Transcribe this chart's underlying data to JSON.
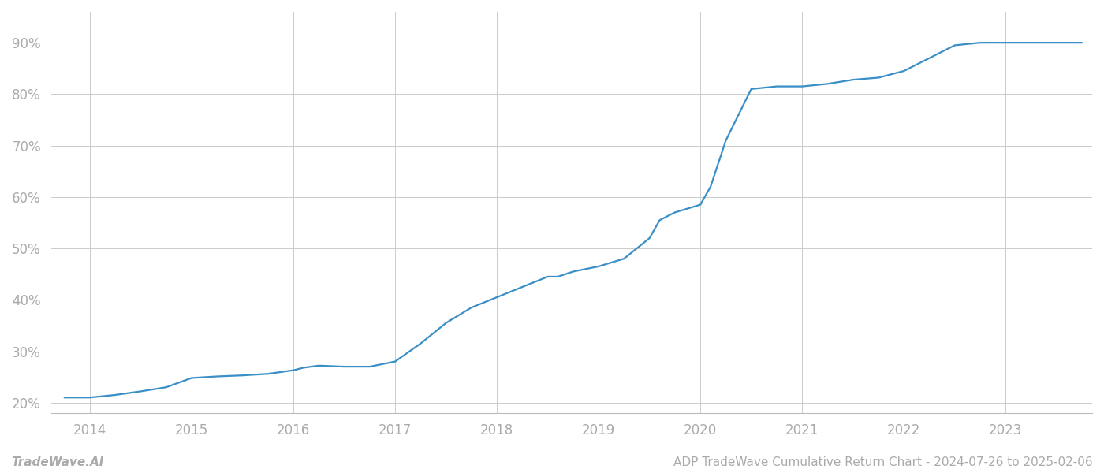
{
  "footer_left": "TradeWave.AI",
  "footer_right": "ADP TradeWave Cumulative Return Chart - 2024-07-26 to 2025-02-06",
  "line_color": "#3a8fc7",
  "line_width": 1.6,
  "background_color": "#ffffff",
  "grid_color": "#cccccc",
  "x_years": [
    2014,
    2015,
    2016,
    2017,
    2018,
    2019,
    2020,
    2021,
    2022,
    2023
  ],
  "data_x": [
    2013.75,
    2014.0,
    2014.25,
    2014.5,
    2014.75,
    2015.0,
    2015.25,
    2015.5,
    2015.75,
    2016.0,
    2016.1,
    2016.25,
    2016.5,
    2016.75,
    2017.0,
    2017.25,
    2017.5,
    2017.75,
    2018.0,
    2018.25,
    2018.5,
    2018.6,
    2018.75,
    2019.0,
    2019.25,
    2019.5,
    2019.6,
    2019.75,
    2020.0,
    2020.1,
    2020.25,
    2020.5,
    2020.75,
    2021.0,
    2021.25,
    2021.5,
    2021.75,
    2022.0,
    2022.25,
    2022.5,
    2022.75,
    2023.0,
    2023.25,
    2023.5,
    2023.75
  ],
  "data_y": [
    21.0,
    21.0,
    21.5,
    22.2,
    23.0,
    24.8,
    25.1,
    25.3,
    25.6,
    26.3,
    26.8,
    27.2,
    27.0,
    27.0,
    28.0,
    31.5,
    35.5,
    38.5,
    40.5,
    42.5,
    44.5,
    44.5,
    45.5,
    46.5,
    48.0,
    52.0,
    55.5,
    57.0,
    58.5,
    62.0,
    71.0,
    81.0,
    81.5,
    81.5,
    82.0,
    82.8,
    83.2,
    84.5,
    87.0,
    89.5,
    90.0,
    90.0,
    90.0,
    90.0,
    90.0
  ],
  "ylim": [
    18,
    96
  ],
  "yticks": [
    20,
    30,
    40,
    50,
    60,
    70,
    80,
    90
  ],
  "xlim": [
    2013.62,
    2023.85
  ],
  "tick_label_color": "#aaaaaa",
  "tick_fontsize": 12,
  "footer_fontsize": 11
}
